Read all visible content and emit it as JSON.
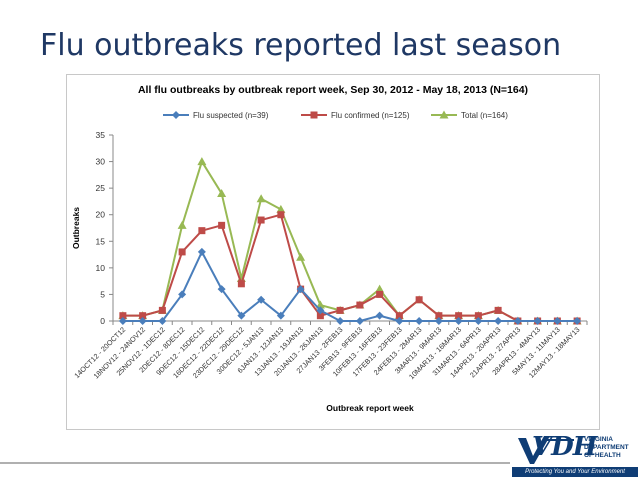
{
  "slide": {
    "title": "Flu outbreaks reported last season"
  },
  "logo": {
    "mark": "VDH",
    "line1": "VIRGINIA",
    "line2": "DEPARTMENT",
    "line3": "OF HEALTH",
    "tagline": "Protecting You and Your Environment"
  },
  "chart_data": {
    "type": "line",
    "title": "All flu outbreaks by outbreak report week, Sep 30, 2012 - May 18, 2013 (N=164)",
    "xlabel": "Outbreak report week",
    "ylabel": "Outbreaks",
    "ylim": [
      0,
      35
    ],
    "yticks": [
      0,
      5,
      10,
      15,
      20,
      25,
      30,
      35
    ],
    "grid": false,
    "legend": "top",
    "categories": [
      "14OCT12 - 20OCT12",
      "18NOV12 - 24NOV12",
      "25NOV12 - 1DEC12",
      "2DEC12 - 8DEC12",
      "9DEC12 - 15DEC12",
      "16DEC12 - 22DEC12",
      "23DEC12 - 29DEC12",
      "30DEC12 - 5JAN13",
      "6JAN13 - 12JAN13",
      "13JAN13 - 19JAN13",
      "20JAN13 - 26JAN13",
      "27JAN13 - 2FEB13",
      "3FEB13 - 9FEB13",
      "10FEB13 - 16FEB13",
      "17FEB13 - 23FEB13",
      "24FEB13 - 2MAR13",
      "3MAR13 - 9MAR13",
      "10MAR13 - 16MAR13",
      "31MAR13 - 6APR13",
      "14APR13 - 20APR13",
      "21APR13 - 27APR13",
      "28APR13 - 4MAY13",
      "5MAY13 - 11MAY13",
      "12MAY13 - 18MAY13"
    ],
    "series": [
      {
        "name": "Flu suspected (n=39)",
        "color": "#4a7ebb",
        "marker": "diamond",
        "values": [
          0,
          0,
          0,
          5,
          13,
          6,
          1,
          4,
          1,
          6,
          2,
          0,
          0,
          1,
          0,
          0,
          0,
          0,
          0,
          0,
          0,
          0,
          0,
          0
        ]
      },
      {
        "name": "Flu confirmed (n=125)",
        "color": "#be4b48",
        "marker": "square",
        "values": [
          1,
          1,
          2,
          13,
          17,
          18,
          7,
          19,
          20,
          6,
          1,
          2,
          3,
          5,
          1,
          4,
          1,
          1,
          1,
          2,
          0,
          0,
          0,
          0
        ]
      },
      {
        "name": "Total (n=164)",
        "color": "#98b954",
        "marker": "triangle",
        "values": [
          1,
          1,
          2,
          18,
          30,
          24,
          8,
          23,
          21,
          12,
          3,
          2,
          3,
          6,
          1,
          4,
          1,
          1,
          1,
          2,
          0,
          0,
          0,
          0
        ]
      }
    ]
  }
}
